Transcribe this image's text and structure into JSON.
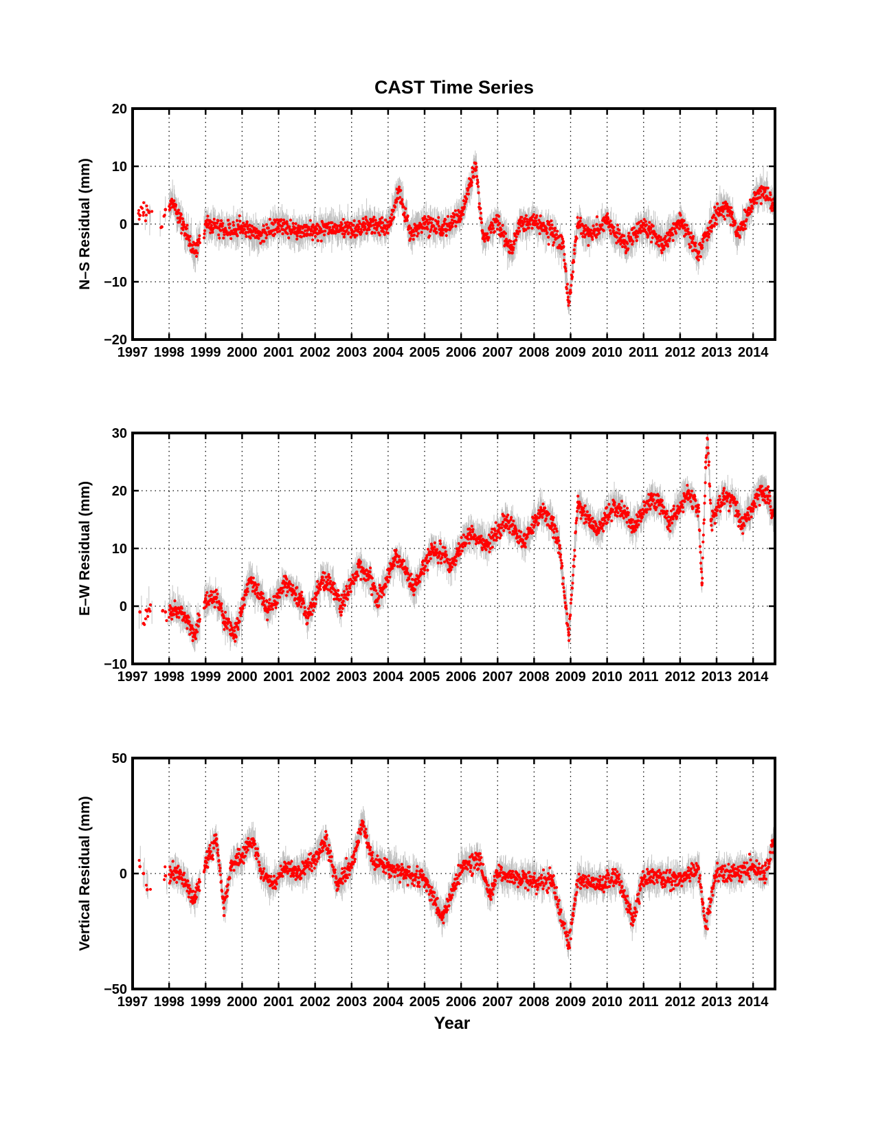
{
  "figure_title": "CAST Time Series",
  "x_axis_label": "Year",
  "colors": {
    "points": "#ff0000",
    "error_bars": "#bdbdbd",
    "grid": "#000000",
    "axes": "#000000",
    "background": "#ffffff"
  },
  "chart_data": [
    {
      "type": "scatter",
      "title": "CAST Time Series",
      "xlabel": "",
      "ylabel": "N–S Residual (mm)",
      "xlim": [
        1997,
        2014.6
      ],
      "ylim": [
        -20,
        20
      ],
      "x_ticks": [
        "1997",
        "1998",
        "1999",
        "2000",
        "2001",
        "2002",
        "2003",
        "2004",
        "2005",
        "2006",
        "2007",
        "2008",
        "2009",
        "2010",
        "2011",
        "2012",
        "2013",
        "2014"
      ],
      "y_ticks": [
        "20",
        "10",
        "0",
        "−10",
        "−20"
      ],
      "y_tick_values": [
        20,
        10,
        0,
        -10,
        -20
      ],
      "grid": true,
      "error_bars": true,
      "series_points": [
        [
          1997.2,
          1.5
        ],
        [
          1997.3,
          2.0
        ],
        [
          1997.45,
          2.0
        ],
        [
          1997.8,
          -0.5
        ],
        [
          1997.9,
          2.5
        ],
        [
          1998.1,
          3.5
        ],
        [
          1998.3,
          1.0
        ],
        [
          1998.5,
          -2.0
        ],
        [
          1998.7,
          -5.0
        ],
        [
          1999.0,
          0.0
        ],
        [
          1999.5,
          -1.0
        ],
        [
          2000.0,
          -0.5
        ],
        [
          2000.5,
          -2.0
        ],
        [
          2001.0,
          0.0
        ],
        [
          2001.5,
          -1.5
        ],
        [
          2002.0,
          -1.0
        ],
        [
          2002.5,
          -0.5
        ],
        [
          2003.0,
          -1.0
        ],
        [
          2003.5,
          0.0
        ],
        [
          2004.0,
          -0.5
        ],
        [
          2004.3,
          6.0
        ],
        [
          2004.6,
          -1.5
        ],
        [
          2005.0,
          0.0
        ],
        [
          2005.5,
          -1.0
        ],
        [
          2006.0,
          1.5
        ],
        [
          2006.4,
          10.5
        ],
        [
          2006.6,
          -2.5
        ],
        [
          2007.0,
          0.5
        ],
        [
          2007.4,
          -5.0
        ],
        [
          2007.6,
          0.0
        ],
        [
          2008.0,
          0.5
        ],
        [
          2008.5,
          -1.5
        ],
        [
          2008.8,
          -4.0
        ],
        [
          2008.95,
          -13.5
        ],
        [
          2009.2,
          0.0
        ],
        [
          2009.5,
          -2.0
        ],
        [
          2010.0,
          0.5
        ],
        [
          2010.5,
          -4.0
        ],
        [
          2011.0,
          0.0
        ],
        [
          2011.5,
          -3.5
        ],
        [
          2012.0,
          0.5
        ],
        [
          2012.5,
          -5.0
        ],
        [
          2013.0,
          2.0
        ],
        [
          2013.3,
          3.0
        ],
        [
          2013.6,
          -2.0
        ],
        [
          2014.0,
          4.0
        ],
        [
          2014.3,
          6.0
        ],
        [
          2014.55,
          3.5
        ]
      ]
    },
    {
      "type": "scatter",
      "title": "",
      "xlabel": "",
      "ylabel": "E–W Residual (mm)",
      "xlim": [
        1997,
        2014.6
      ],
      "ylim": [
        -10,
        30
      ],
      "x_ticks": [
        "1997",
        "1998",
        "1999",
        "2000",
        "2001",
        "2002",
        "2003",
        "2004",
        "2005",
        "2006",
        "2007",
        "2008",
        "2009",
        "2010",
        "2011",
        "2012",
        "2013",
        "2014"
      ],
      "y_ticks": [
        "30",
        "20",
        "10",
        "0",
        "−10"
      ],
      "y_tick_values": [
        30,
        20,
        10,
        0,
        -10
      ],
      "grid": true,
      "error_bars": true,
      "series_points": [
        [
          1997.2,
          -1.0
        ],
        [
          1997.3,
          -3.0
        ],
        [
          1997.45,
          -0.5
        ],
        [
          1997.9,
          -1.0
        ],
        [
          1998.2,
          -0.5
        ],
        [
          1998.5,
          -2.5
        ],
        [
          1998.7,
          -5.0
        ],
        [
          1999.0,
          1.0
        ],
        [
          1999.3,
          1.5
        ],
        [
          1999.5,
          -2.0
        ],
        [
          1999.8,
          -5.0
        ],
        [
          2000.2,
          4.5
        ],
        [
          2000.5,
          2.0
        ],
        [
          2000.7,
          -1.0
        ],
        [
          2001.2,
          4.0
        ],
        [
          2001.6,
          1.0
        ],
        [
          2001.8,
          -2.0
        ],
        [
          2002.2,
          5.0
        ],
        [
          2002.5,
          3.0
        ],
        [
          2002.7,
          0.0
        ],
        [
          2003.2,
          7.0
        ],
        [
          2003.5,
          5.0
        ],
        [
          2003.7,
          1.0
        ],
        [
          2004.2,
          8.5
        ],
        [
          2004.5,
          6.0
        ],
        [
          2004.7,
          3.0
        ],
        [
          2005.2,
          10.0
        ],
        [
          2005.5,
          9.0
        ],
        [
          2005.7,
          7.0
        ],
        [
          2006.2,
          12.5
        ],
        [
          2006.5,
          12.0
        ],
        [
          2006.7,
          10.5
        ],
        [
          2007.2,
          15.0
        ],
        [
          2007.5,
          13.0
        ],
        [
          2007.7,
          11.0
        ],
        [
          2008.2,
          16.5
        ],
        [
          2008.5,
          14.0
        ],
        [
          2008.7,
          10.5
        ],
        [
          2008.95,
          -5.0
        ],
        [
          2009.2,
          18.0
        ],
        [
          2009.5,
          15.0
        ],
        [
          2009.7,
          13.0
        ],
        [
          2010.2,
          17.5
        ],
        [
          2010.5,
          16.0
        ],
        [
          2010.7,
          13.5
        ],
        [
          2011.2,
          18.5
        ],
        [
          2011.5,
          17.5
        ],
        [
          2011.7,
          14.0
        ],
        [
          2012.2,
          19.5
        ],
        [
          2012.5,
          17.0
        ],
        [
          2012.6,
          4.0
        ],
        [
          2012.7,
          24.0
        ],
        [
          2012.75,
          30.0
        ],
        [
          2012.85,
          15.0
        ],
        [
          2013.2,
          19.0
        ],
        [
          2013.5,
          18.0
        ],
        [
          2013.7,
          14.0
        ],
        [
          2014.2,
          20.0
        ],
        [
          2014.4,
          19.0
        ],
        [
          2014.55,
          16.0
        ]
      ]
    },
    {
      "type": "scatter",
      "title": "",
      "xlabel": "Year",
      "ylabel": "Vertical Residual (mm)",
      "xlim": [
        1997,
        2014.6
      ],
      "ylim": [
        -50,
        50
      ],
      "x_ticks": [
        "1997",
        "1998",
        "1999",
        "2000",
        "2001",
        "2002",
        "2003",
        "2004",
        "2005",
        "2006",
        "2007",
        "2008",
        "2009",
        "2010",
        "2011",
        "2012",
        "2013",
        "2014"
      ],
      "y_ticks": [
        "50",
        "0",
        "−50"
      ],
      "y_tick_values": [
        50,
        0,
        -50
      ],
      "grid": true,
      "error_bars": true,
      "series_points": [
        [
          1997.2,
          3.0
        ],
        [
          1997.3,
          0.0
        ],
        [
          1997.4,
          -7.0
        ],
        [
          1997.9,
          -1.0
        ],
        [
          1998.2,
          1.0
        ],
        [
          1998.5,
          -5.0
        ],
        [
          1998.7,
          -12.0
        ],
        [
          1999.0,
          5.0
        ],
        [
          1999.3,
          15.0
        ],
        [
          1999.5,
          -15.0
        ],
        [
          1999.7,
          3.0
        ],
        [
          2000.0,
          8.0
        ],
        [
          2000.3,
          15.0
        ],
        [
          2000.5,
          2.0
        ],
        [
          2000.8,
          -5.0
        ],
        [
          2001.2,
          3.0
        ],
        [
          2001.5,
          0.0
        ],
        [
          2002.0,
          6.0
        ],
        [
          2002.3,
          15.0
        ],
        [
          2002.6,
          -5.0
        ],
        [
          2003.0,
          4.0
        ],
        [
          2003.3,
          22.0
        ],
        [
          2003.6,
          5.0
        ],
        [
          2004.0,
          3.0
        ],
        [
          2004.5,
          0.0
        ],
        [
          2005.0,
          -2.0
        ],
        [
          2005.5,
          -19.0
        ],
        [
          2006.0,
          3.0
        ],
        [
          2006.5,
          6.0
        ],
        [
          2006.8,
          -10.0
        ],
        [
          2007.0,
          0.0
        ],
        [
          2007.5,
          -2.0
        ],
        [
          2008.0,
          -3.0
        ],
        [
          2008.5,
          -3.0
        ],
        [
          2008.95,
          -31.0
        ],
        [
          2009.2,
          -3.0
        ],
        [
          2009.8,
          -5.0
        ],
        [
          2010.3,
          -2.0
        ],
        [
          2010.7,
          -20.0
        ],
        [
          2011.0,
          -2.0
        ],
        [
          2011.5,
          -2.0
        ],
        [
          2012.0,
          -3.0
        ],
        [
          2012.5,
          2.0
        ],
        [
          2012.7,
          -23.0
        ],
        [
          2013.0,
          1.0
        ],
        [
          2013.5,
          0.0
        ],
        [
          2014.0,
          3.0
        ],
        [
          2014.3,
          -2.0
        ],
        [
          2014.55,
          13.0
        ]
      ]
    }
  ]
}
